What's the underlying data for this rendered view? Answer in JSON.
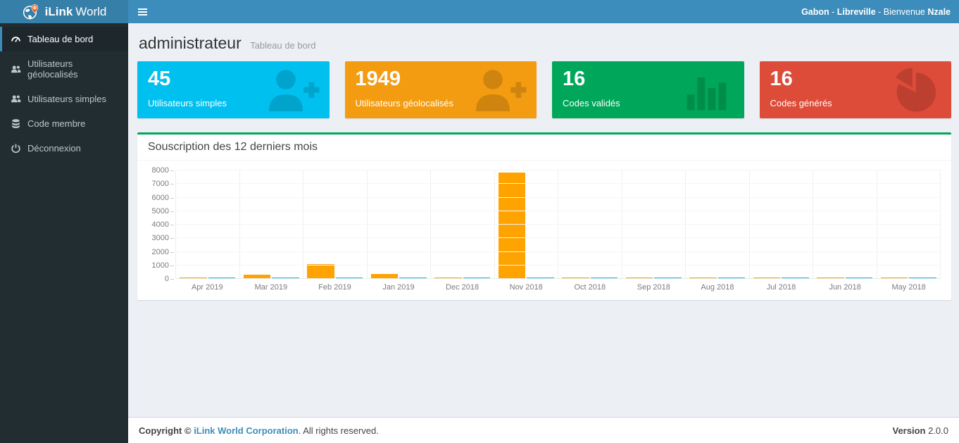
{
  "header": {
    "brand_bold": "iLink",
    "brand_regular": "World",
    "user_info": {
      "country": "Gabon",
      "separator": " - ",
      "city": "Libreville",
      "greeting": "Bienvenue ",
      "name": "Nzale"
    }
  },
  "sidebar": {
    "items": [
      {
        "label": "Tableau de bord",
        "icon": "dashboard-icon",
        "active": true
      },
      {
        "label": "Utilisateurs géolocalisés",
        "icon": "users-icon",
        "active": false
      },
      {
        "label": "Utilisateurs simples",
        "icon": "users-icon",
        "active": false
      },
      {
        "label": "Code membre",
        "icon": "database-icon",
        "active": false
      },
      {
        "label": "Déconnexion",
        "icon": "power-icon",
        "active": false
      }
    ]
  },
  "page": {
    "title": "administrateur",
    "subtitle": "Tableau de bord"
  },
  "cards": [
    {
      "value": "45",
      "label": "Utilisateurs simples",
      "color": "#00c0ef",
      "icon": "user-plus-icon"
    },
    {
      "value": "1949",
      "label": "Utilisateurs géolocalisés",
      "color": "#f39c12",
      "icon": "user-plus-icon"
    },
    {
      "value": "16",
      "label": "Codes validés",
      "color": "#00a65a",
      "icon": "bar-chart-icon"
    },
    {
      "value": "16",
      "label": "Codes générés",
      "color": "#dd4b39",
      "icon": "pie-chart-icon"
    }
  ],
  "panel": {
    "title": "Souscription des 12 derniers mois",
    "accent_color": "#00a65a"
  },
  "chart_data": {
    "type": "bar",
    "title": "Souscription des 12 derniers mois",
    "categories": [
      "Apr 2019",
      "Mar 2019",
      "Feb 2019",
      "Jan 2019",
      "Dec 2018",
      "Nov 2018",
      "Oct 2018",
      "Sep 2018",
      "Aug 2018",
      "Jul 2018",
      "Jun 2018",
      "May 2018"
    ],
    "series": [
      {
        "name": "series-orange",
        "color": "#ffa300",
        "values": [
          80,
          300,
          1100,
          350,
          90,
          7850,
          80,
          90,
          90,
          90,
          90,
          90
        ]
      },
      {
        "name": "series-cyan",
        "color": "#00bff3",
        "values": [
          90,
          90,
          90,
          90,
          90,
          90,
          90,
          90,
          90,
          90,
          90,
          90
        ]
      }
    ],
    "xlabel": "",
    "ylabel": "",
    "ylim": [
      0,
      8000
    ],
    "yticks": [
      0,
      1000,
      2000,
      3000,
      4000,
      5000,
      6000,
      7000,
      8000
    ],
    "grid": true,
    "legend": "none"
  },
  "footer": {
    "copyright_prefix": "Copyright © ",
    "company_link": "iLink World Corporation",
    "copyright_suffix": ". All rights reserved.",
    "version_label": "Version",
    "version_value": " 2.0.0"
  }
}
